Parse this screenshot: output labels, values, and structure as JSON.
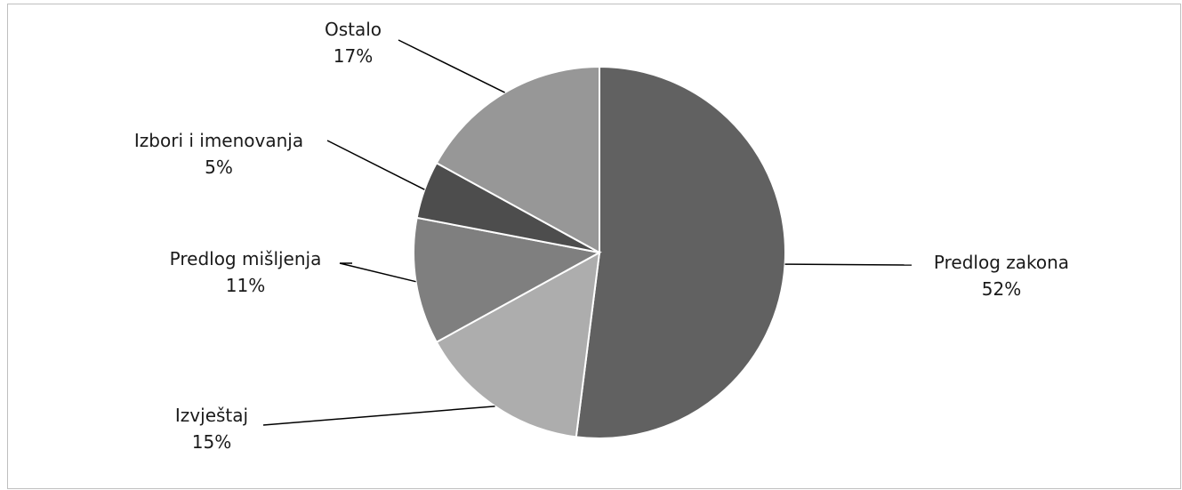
{
  "chart_data": {
    "type": "pie",
    "title": "",
    "slices": [
      {
        "label": "Predlog zakona",
        "value": 52,
        "value_label": "52%",
        "color": "#616161"
      },
      {
        "label": "Izvještaj",
        "value": 15,
        "value_label": "15%",
        "color": "#adadad"
      },
      {
        "label": "Predlog mišljenja",
        "value": 11,
        "value_label": "11%",
        "color": "#7f7f7f"
      },
      {
        "label": "Izbori i imenovanja",
        "value": 5,
        "value_label": "5%",
        "color": "#4d4d4d"
      },
      {
        "label": "Ostalo",
        "value": 17,
        "value_label": "17%",
        "color": "#979797"
      }
    ],
    "start_angle": "12 o'clock",
    "direction": "clockwise",
    "legend": "none",
    "data_labels": "outside with leader lines"
  }
}
